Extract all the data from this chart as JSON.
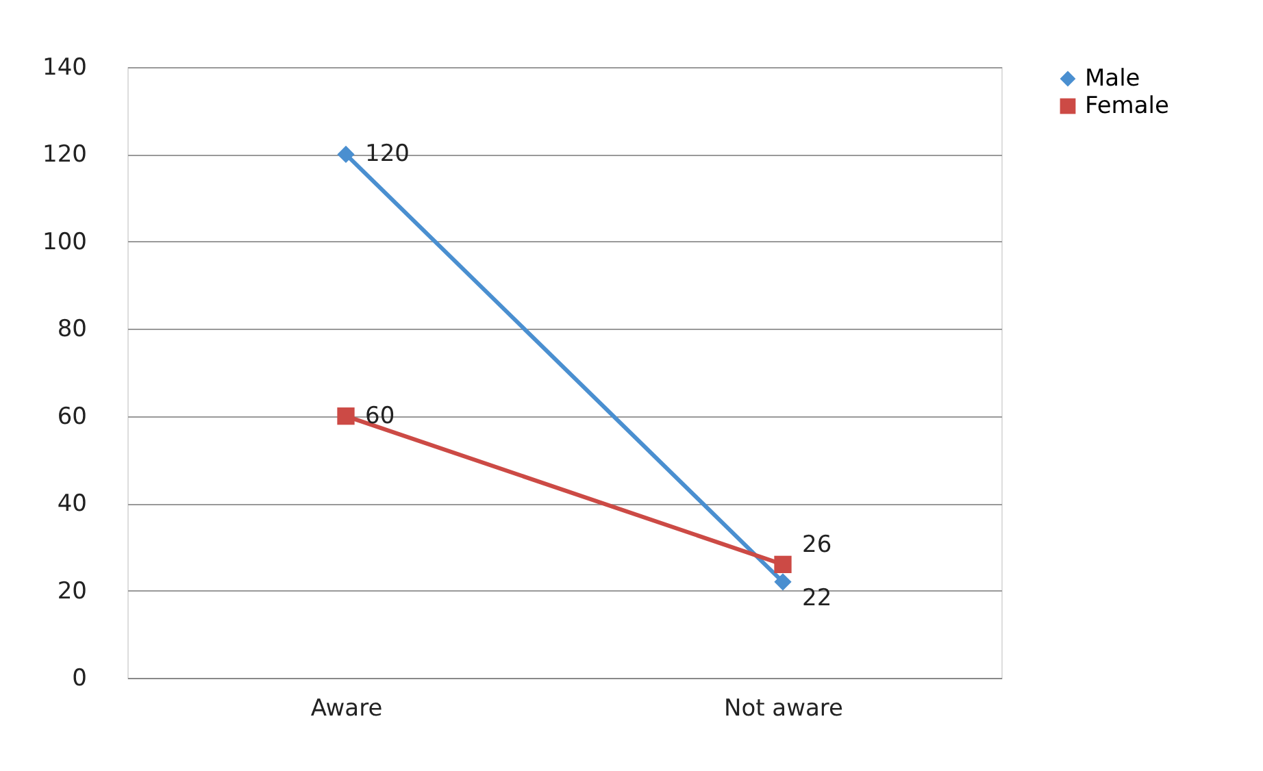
{
  "chart_data": {
    "type": "line",
    "categories": [
      "Aware",
      "Not aware"
    ],
    "series": [
      {
        "name": "Male",
        "color": "#4a8fd0",
        "values": [
          120,
          22
        ],
        "marker": "diamond"
      },
      {
        "name": "Female",
        "color": "#cc4a45",
        "values": [
          60,
          26
        ],
        "marker": "square"
      }
    ],
    "ylim": [
      0,
      140
    ],
    "yticks": [
      0,
      20,
      40,
      60,
      80,
      100,
      120,
      140
    ],
    "grid": "y",
    "legend": "right",
    "data_labels": true,
    "line_style": "solid"
  }
}
